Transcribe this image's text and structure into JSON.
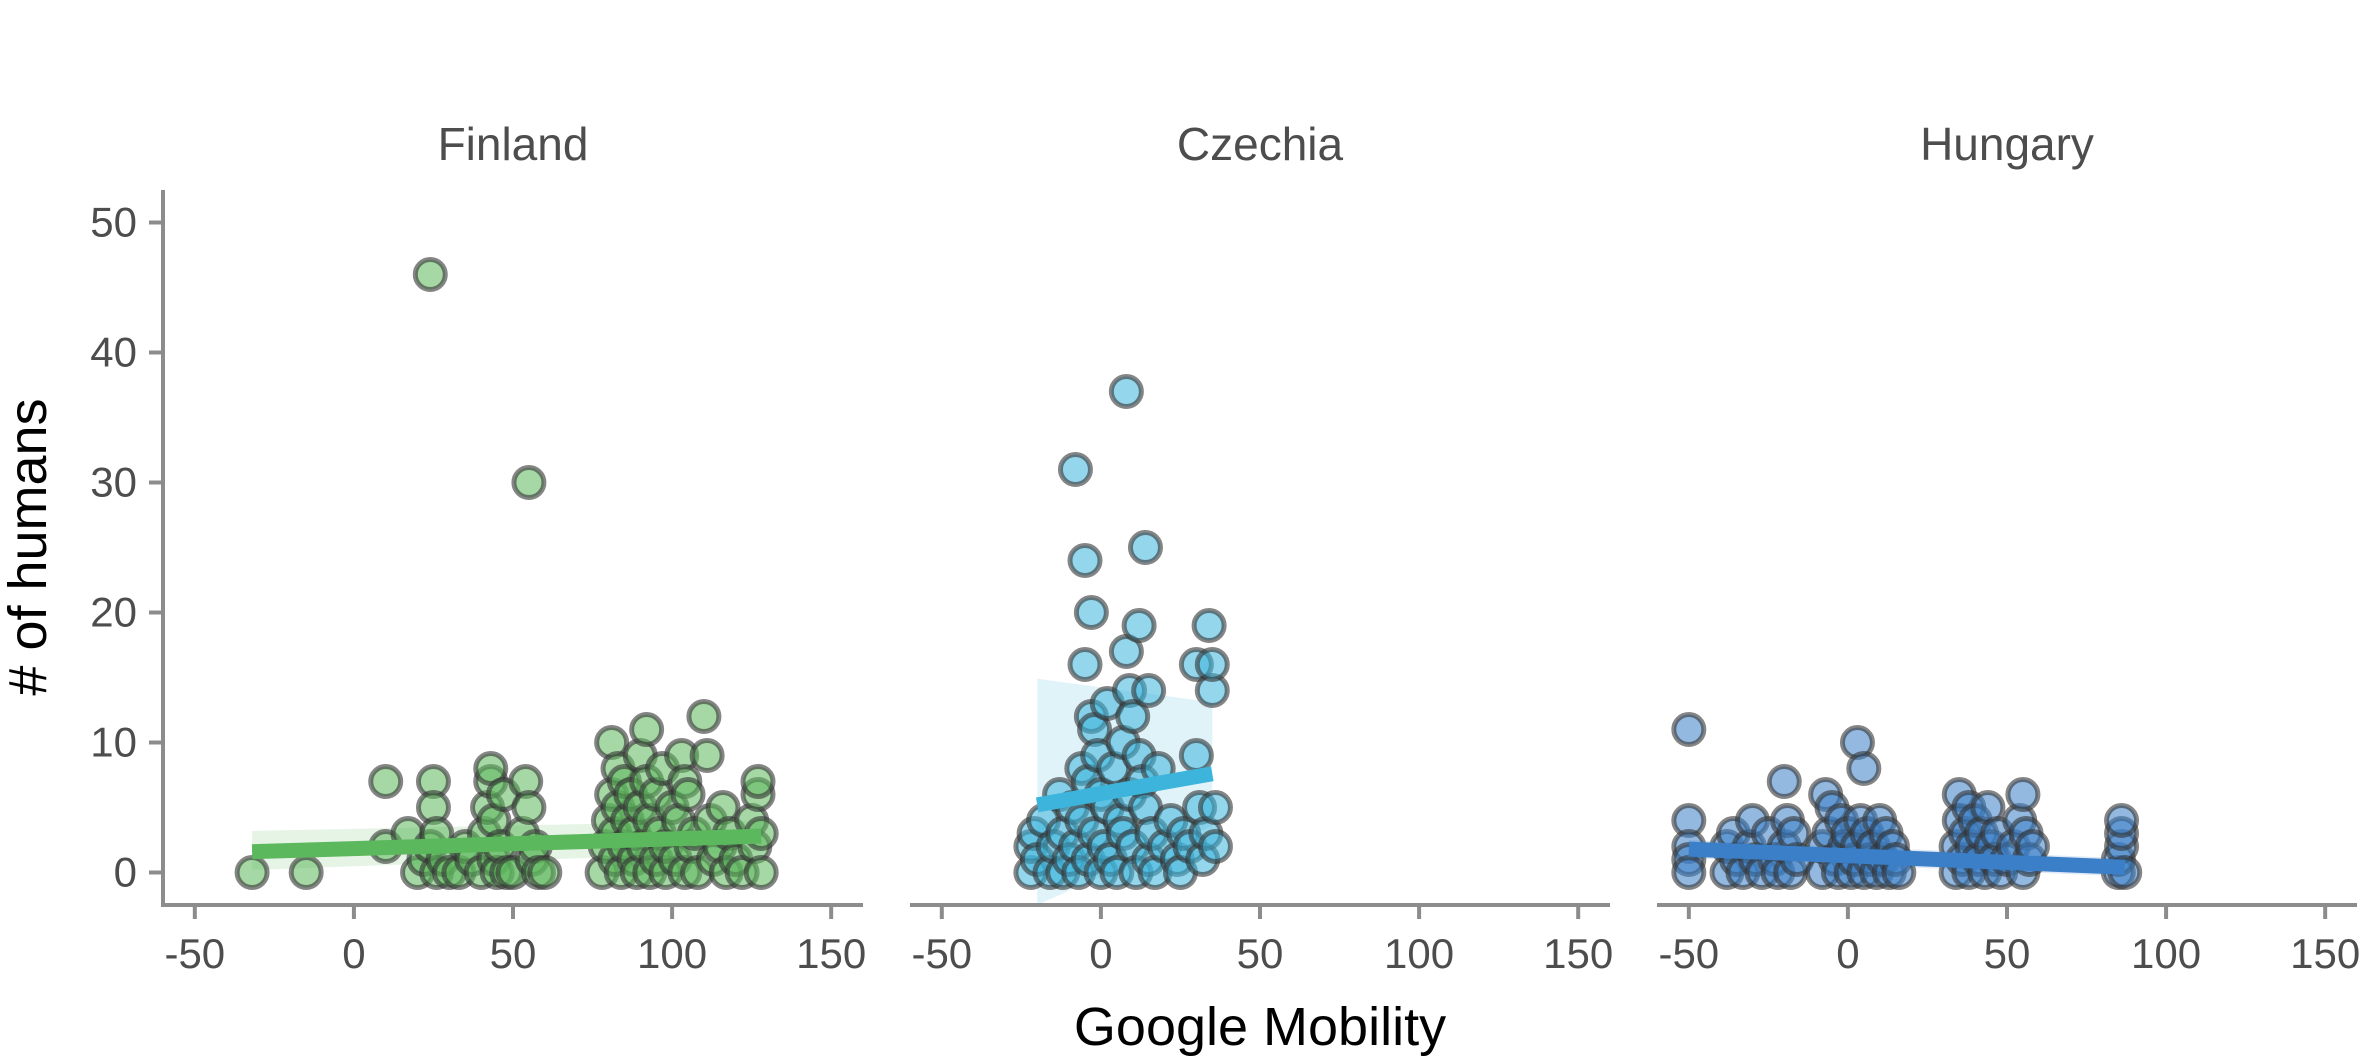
{
  "chart_data": {
    "type": "scatter",
    "facet": "country",
    "xlabel": "Google Mobility",
    "ylabel": "# of humans",
    "xlim": [
      -60,
      160
    ],
    "ylim": [
      -2.5,
      52.5
    ],
    "xticks": [
      -50,
      0,
      50,
      100,
      150
    ],
    "yticks": [
      0,
      10,
      20,
      30,
      40,
      50
    ],
    "grid": false,
    "legend": "none",
    "panels": [
      {
        "name": "Finland",
        "color": "#5cb85c",
        "fit": {
          "x": [
            -32,
            128
          ],
          "y": [
            1.6,
            2.8
          ],
          "band_lo": [
            0.2,
            1.6
          ],
          "band_hi": [
            3.2,
            4.0
          ]
        },
        "points": [
          [
            -32,
            0
          ],
          [
            -15,
            0
          ],
          [
            10,
            7
          ],
          [
            10,
            2
          ],
          [
            17,
            3
          ],
          [
            20,
            0
          ],
          [
            22,
            1
          ],
          [
            24,
            2
          ],
          [
            24,
            46
          ],
          [
            25,
            7
          ],
          [
            25,
            5
          ],
          [
            26,
            3
          ],
          [
            26,
            0
          ],
          [
            28,
            1
          ],
          [
            30,
            0
          ],
          [
            33,
            0
          ],
          [
            35,
            2
          ],
          [
            37,
            1
          ],
          [
            40,
            0
          ],
          [
            41,
            3
          ],
          [
            42,
            5
          ],
          [
            43,
            7
          ],
          [
            43,
            8
          ],
          [
            44,
            4
          ],
          [
            44,
            1
          ],
          [
            45,
            0
          ],
          [
            46,
            2
          ],
          [
            47,
            6
          ],
          [
            48,
            0
          ],
          [
            50,
            0
          ],
          [
            53,
            3
          ],
          [
            54,
            7
          ],
          [
            55,
            5
          ],
          [
            55,
            30
          ],
          [
            56,
            1
          ],
          [
            57,
            2
          ],
          [
            58,
            0
          ],
          [
            60,
            0
          ],
          [
            78,
            0
          ],
          [
            79,
            2
          ],
          [
            80,
            4
          ],
          [
            81,
            6
          ],
          [
            81,
            10
          ],
          [
            82,
            3
          ],
          [
            82,
            1
          ],
          [
            83,
            5
          ],
          [
            83,
            8
          ],
          [
            84,
            0
          ],
          [
            85,
            2
          ],
          [
            85,
            7
          ],
          [
            86,
            4
          ],
          [
            87,
            6
          ],
          [
            88,
            1
          ],
          [
            88,
            3
          ],
          [
            89,
            0
          ],
          [
            90,
            5
          ],
          [
            90,
            9
          ],
          [
            91,
            2
          ],
          [
            92,
            7
          ],
          [
            92,
            11
          ],
          [
            93,
            4
          ],
          [
            93,
            0
          ],
          [
            95,
            1
          ],
          [
            95,
            6
          ],
          [
            96,
            3
          ],
          [
            97,
            8
          ],
          [
            98,
            0
          ],
          [
            98,
            2
          ],
          [
            100,
            5
          ],
          [
            101,
            1
          ],
          [
            102,
            4
          ],
          [
            103,
            9
          ],
          [
            104,
            0
          ],
          [
            104,
            7
          ],
          [
            105,
            6
          ],
          [
            106,
            2
          ],
          [
            107,
            3
          ],
          [
            108,
            0
          ],
          [
            110,
            12
          ],
          [
            111,
            9
          ],
          [
            112,
            4
          ],
          [
            113,
            1
          ],
          [
            115,
            2
          ],
          [
            116,
            5
          ],
          [
            117,
            0
          ],
          [
            118,
            3
          ],
          [
            120,
            1
          ],
          [
            122,
            0
          ],
          [
            125,
            4
          ],
          [
            126,
            2
          ],
          [
            127,
            6
          ],
          [
            127,
            7
          ],
          [
            128,
            0
          ],
          [
            128,
            3
          ]
        ]
      },
      {
        "name": "Czechia",
        "color": "#3cb4dc",
        "fit": {
          "x": [
            -20,
            35
          ],
          "y": [
            5.2,
            7.6
          ],
          "band_lo": [
            -2.5,
            3.6
          ],
          "band_hi": [
            14.9,
            13.1
          ]
        },
        "points": [
          [
            -22,
            0
          ],
          [
            -22,
            2
          ],
          [
            -21,
            3
          ],
          [
            -20,
            1
          ],
          [
            -18,
            4
          ],
          [
            -16,
            0
          ],
          [
            -15,
            2
          ],
          [
            -13,
            6
          ],
          [
            -12,
            3
          ],
          [
            -12,
            0
          ],
          [
            -10,
            1
          ],
          [
            -9,
            5
          ],
          [
            -8,
            2
          ],
          [
            -7,
            0
          ],
          [
            -6,
            8
          ],
          [
            -6,
            4
          ],
          [
            -5,
            24
          ],
          [
            -5,
            16
          ],
          [
            -4,
            1
          ],
          [
            -4,
            7
          ],
          [
            -3,
            20
          ],
          [
            -3,
            12
          ],
          [
            -2,
            3
          ],
          [
            -2,
            11
          ],
          [
            -1,
            9
          ],
          [
            0,
            0
          ],
          [
            0,
            6
          ],
          [
            1,
            2
          ],
          [
            2,
            13
          ],
          [
            2,
            5
          ],
          [
            3,
            1
          ],
          [
            4,
            8
          ],
          [
            5,
            0
          ],
          [
            6,
            4
          ],
          [
            7,
            10
          ],
          [
            7,
            3
          ],
          [
            8,
            17
          ],
          [
            8,
            37
          ],
          [
            9,
            14
          ],
          [
            9,
            6
          ],
          [
            10,
            12
          ],
          [
            10,
            2
          ],
          [
            11,
            0
          ],
          [
            12,
            9
          ],
          [
            12,
            19
          ],
          [
            13,
            7
          ],
          [
            14,
            25
          ],
          [
            14,
            5
          ],
          [
            15,
            14
          ],
          [
            15,
            1
          ],
          [
            16,
            3
          ],
          [
            17,
            0
          ],
          [
            18,
            8
          ],
          [
            20,
            2
          ],
          [
            22,
            4
          ],
          [
            24,
            1
          ],
          [
            25,
            0
          ],
          [
            26,
            3
          ],
          [
            28,
            2
          ],
          [
            30,
            16
          ],
          [
            30,
            9
          ],
          [
            31,
            5
          ],
          [
            32,
            1
          ],
          [
            33,
            3
          ],
          [
            34,
            19
          ],
          [
            35,
            14
          ],
          [
            35,
            16
          ],
          [
            36,
            5
          ],
          [
            36,
            2
          ],
          [
            -8,
            31
          ]
        ]
      },
      {
        "name": "Hungary",
        "color": "#3a7fc8",
        "fit": {
          "x": [
            -50,
            87
          ],
          "y": [
            1.8,
            0.4
          ],
          "band_lo": [
            1.1,
            -0.3
          ],
          "band_hi": [
            2.5,
            1.1
          ]
        },
        "points": [
          [
            -50,
            11
          ],
          [
            -50,
            4
          ],
          [
            -50,
            2
          ],
          [
            -50,
            1
          ],
          [
            -50,
            0
          ],
          [
            -38,
            0
          ],
          [
            -38,
            2
          ],
          [
            -36,
            3
          ],
          [
            -35,
            1
          ],
          [
            -33,
            0
          ],
          [
            -31,
            2
          ],
          [
            -30,
            4
          ],
          [
            -29,
            1
          ],
          [
            -27,
            0
          ],
          [
            -25,
            3
          ],
          [
            -23,
            1
          ],
          [
            -22,
            0
          ],
          [
            -20,
            7
          ],
          [
            -20,
            2
          ],
          [
            -19,
            4
          ],
          [
            -18,
            0
          ],
          [
            -17,
            3
          ],
          [
            -16,
            1
          ],
          [
            -8,
            0
          ],
          [
            -8,
            2
          ],
          [
            -7,
            6
          ],
          [
            -6,
            3
          ],
          [
            -5,
            5
          ],
          [
            -4,
            1
          ],
          [
            -3,
            0
          ],
          [
            -2,
            4
          ],
          [
            -1,
            2
          ],
          [
            0,
            3
          ],
          [
            1,
            0
          ],
          [
            2,
            1
          ],
          [
            3,
            10
          ],
          [
            3,
            2
          ],
          [
            4,
            4
          ],
          [
            5,
            0
          ],
          [
            5,
            8
          ],
          [
            6,
            3
          ],
          [
            7,
            1
          ],
          [
            8,
            2
          ],
          [
            9,
            0
          ],
          [
            10,
            4
          ],
          [
            11,
            1
          ],
          [
            12,
            3
          ],
          [
            13,
            0
          ],
          [
            14,
            2
          ],
          [
            15,
            1
          ],
          [
            16,
            0
          ],
          [
            34,
            0
          ],
          [
            34,
            2
          ],
          [
            35,
            6
          ],
          [
            35,
            4
          ],
          [
            36,
            1
          ],
          [
            37,
            3
          ],
          [
            38,
            5
          ],
          [
            38,
            0
          ],
          [
            39,
            2
          ],
          [
            40,
            4
          ],
          [
            41,
            1
          ],
          [
            42,
            3
          ],
          [
            43,
            0
          ],
          [
            44,
            5
          ],
          [
            45,
            2
          ],
          [
            46,
            1
          ],
          [
            47,
            3
          ],
          [
            48,
            0
          ],
          [
            50,
            1
          ],
          [
            52,
            2
          ],
          [
            54,
            4
          ],
          [
            55,
            6
          ],
          [
            55,
            0
          ],
          [
            56,
            3
          ],
          [
            57,
            1
          ],
          [
            58,
            2
          ],
          [
            85,
            0
          ],
          [
            85,
            1
          ],
          [
            86,
            2
          ],
          [
            86,
            3
          ],
          [
            86,
            4
          ],
          [
            87,
            0
          ]
        ]
      }
    ]
  }
}
